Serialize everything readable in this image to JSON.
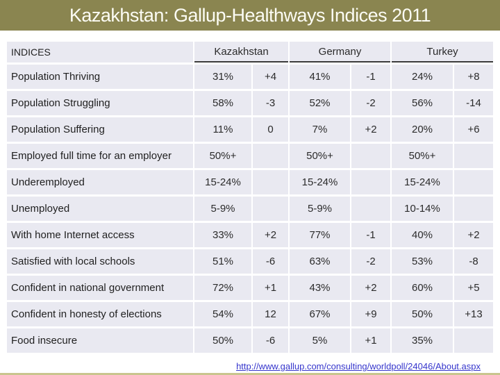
{
  "title": "Kazakhstan: Gallup-Healthways Indices 2011",
  "colors": {
    "title_bar_bg": "#8A8550",
    "title_text": "#FCFCF4",
    "cell_bg": "#E9E9F1",
    "header_underline": "#3b3b3b",
    "link_color": "#3535CC",
    "bottom_accent": "#C9C58E"
  },
  "table": {
    "indices_header": "INDICES",
    "countries": [
      "Kazakhstan",
      "Germany",
      "Turkey"
    ],
    "rows": [
      {
        "label": "Population Thriving",
        "values": [
          "31%",
          "+4",
          "41%",
          "-1",
          "24%",
          "+8"
        ]
      },
      {
        "label": "Population Struggling",
        "values": [
          "58%",
          "-3",
          "52%",
          "-2",
          "56%",
          "-14"
        ]
      },
      {
        "label": "Population Suffering",
        "values": [
          "11%",
          "0",
          "7%",
          "+2",
          "20%",
          "+6"
        ]
      },
      {
        "label": "Employed full time for an employer",
        "values": [
          "50%+",
          "",
          "50%+",
          "",
          "50%+",
          ""
        ]
      },
      {
        "label": "Underemployed",
        "values": [
          "15-24%",
          "",
          "15-24%",
          "",
          "15-24%",
          ""
        ]
      },
      {
        "label": "Unemployed",
        "values": [
          "5-9%",
          "",
          "5-9%",
          "",
          "10-14%",
          ""
        ]
      },
      {
        "label": "With home Internet access",
        "values": [
          "33%",
          "+2",
          "77%",
          "-1",
          "40%",
          "+2"
        ]
      },
      {
        "label": "Satisfied with local schools",
        "values": [
          "51%",
          "-6",
          "63%",
          "-2",
          "53%",
          "-8"
        ]
      },
      {
        "label": "Confident in national government",
        "values": [
          "72%",
          "+1",
          "43%",
          "+2",
          "60%",
          "+5"
        ]
      },
      {
        "label": "Confident in honesty of elections",
        "values": [
          "54%",
          "12",
          "67%",
          "+9",
          "50%",
          "+13"
        ]
      },
      {
        "label": "Food insecure",
        "values": [
          "50%",
          "-6",
          "5%",
          "+1",
          "35%",
          ""
        ]
      }
    ]
  },
  "footer": {
    "source_link": "http://www.gallup.com/consulting/worldpoll/24046/About.aspx"
  }
}
